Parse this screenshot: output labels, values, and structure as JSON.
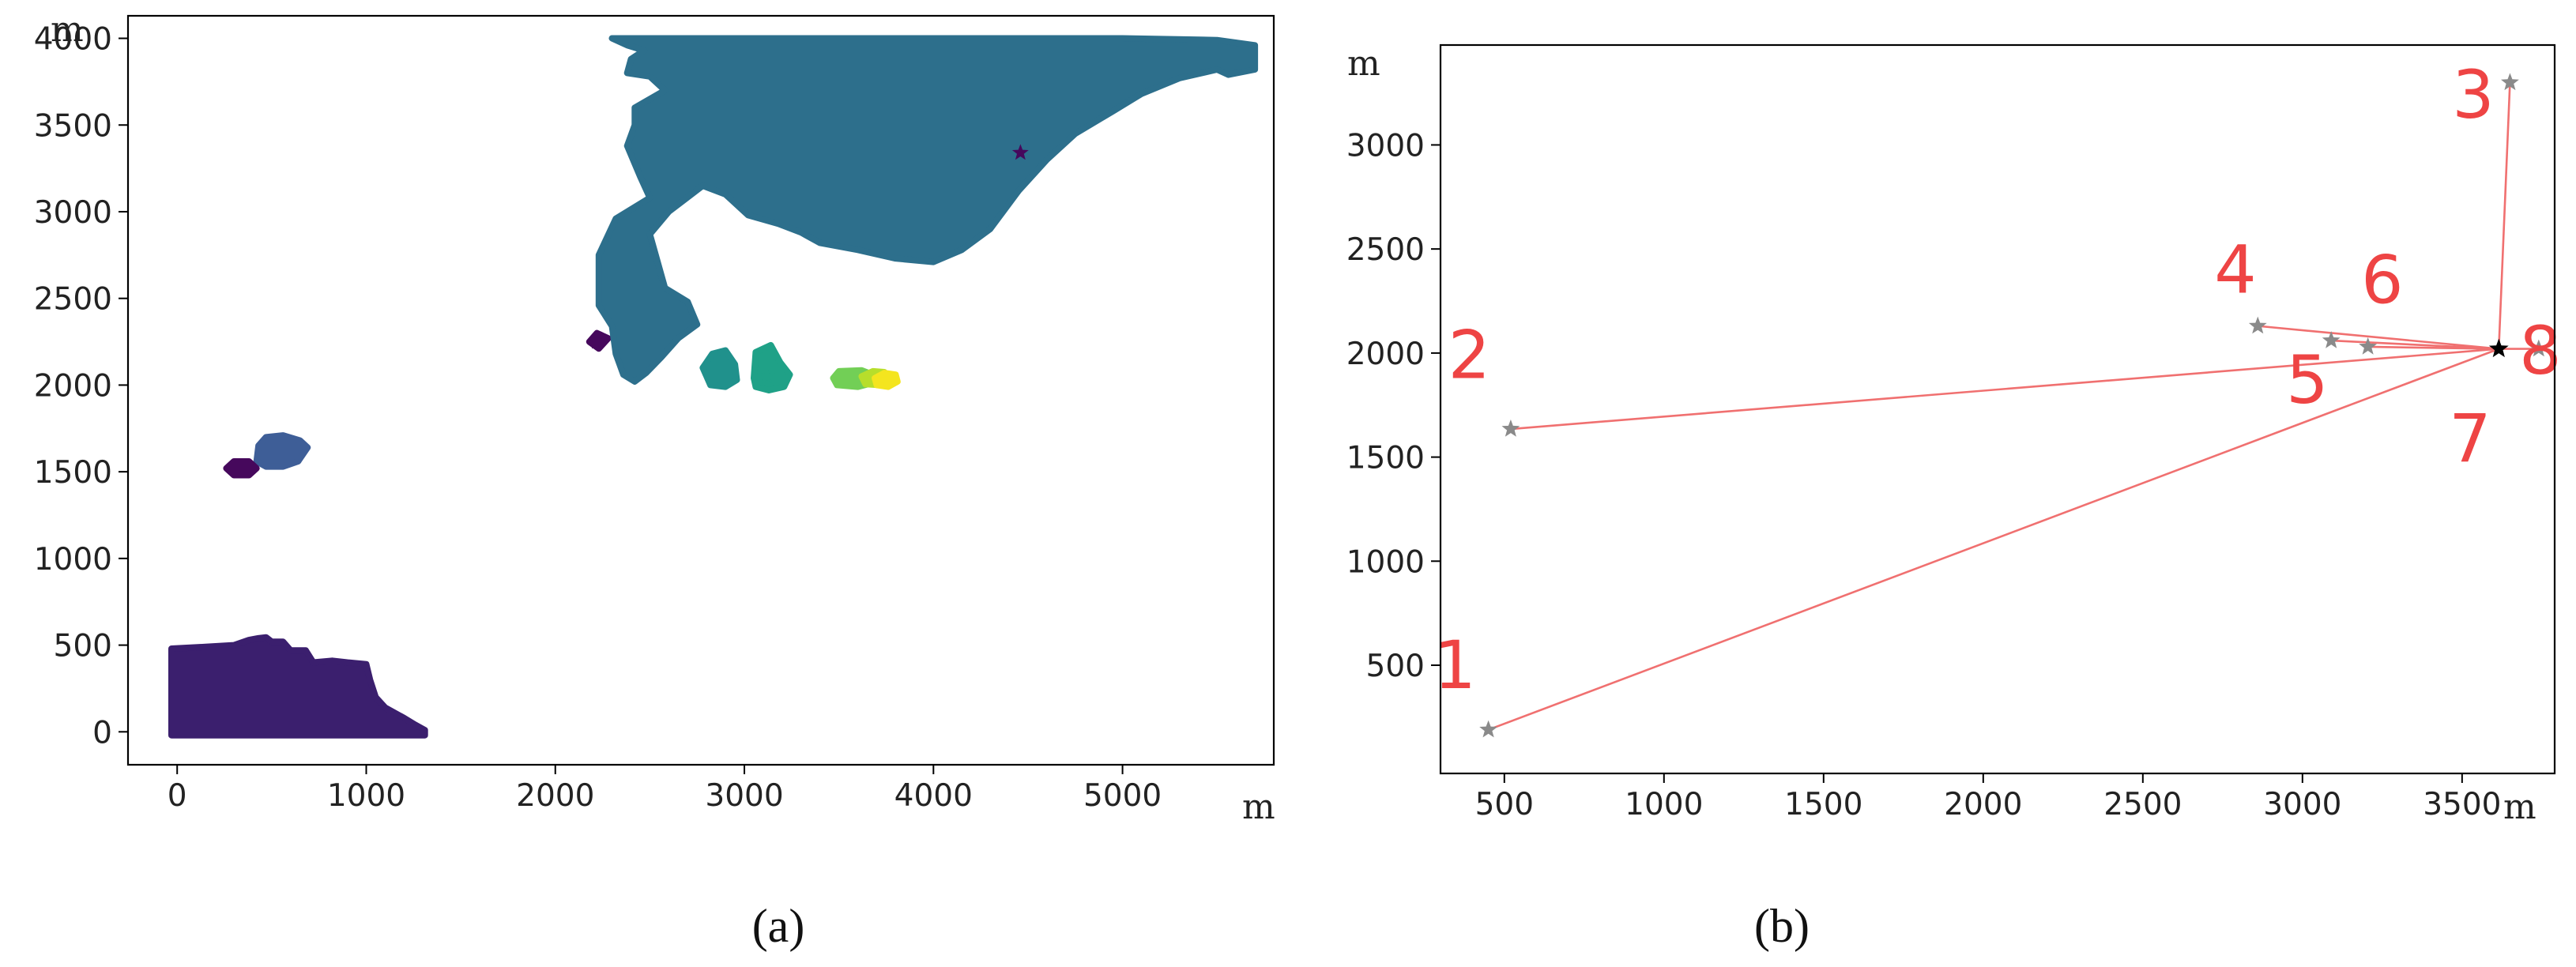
{
  "chart_data": [
    {
      "panel_caption": "(a)",
      "type": "scatter",
      "x_unit_label": "m",
      "y_unit_label": "m",
      "xlim": [
        -260,
        5800
      ],
      "ylim": [
        -190,
        4130
      ],
      "x_ticks": [
        0,
        1000,
        2000,
        3000,
        4000,
        5000
      ],
      "y_ticks": [
        0,
        500,
        1000,
        1500,
        2000,
        2500,
        3000,
        3500,
        4000
      ],
      "grid": false,
      "legend": "none",
      "clusters": [
        {
          "color": "#3b1f6e",
          "polygon": [
            [
              -30,
              480
            ],
            [
              150,
              490
            ],
            [
              300,
              500
            ],
            [
              380,
              530
            ],
            [
              430,
              540
            ],
            [
              470,
              545
            ],
            [
              500,
              520
            ],
            [
              560,
              520
            ],
            [
              600,
              470
            ],
            [
              680,
              470
            ],
            [
              720,
              400
            ],
            [
              820,
              410
            ],
            [
              900,
              400
            ],
            [
              1000,
              390
            ],
            [
              1020,
              300
            ],
            [
              1050,
              200
            ],
            [
              1100,
              140
            ],
            [
              1200,
              80
            ],
            [
              1260,
              40
            ],
            [
              1310,
              10
            ],
            [
              1310,
              -20
            ],
            [
              1150,
              -20
            ],
            [
              900,
              -20
            ],
            [
              600,
              -20
            ],
            [
              300,
              -20
            ],
            [
              -30,
              -20
            ]
          ]
        },
        {
          "color": "#3e5e97",
          "polygon": [
            [
              420,
              1560
            ],
            [
              430,
              1650
            ],
            [
              470,
              1700
            ],
            [
              560,
              1710
            ],
            [
              650,
              1680
            ],
            [
              690,
              1640
            ],
            [
              640,
              1560
            ],
            [
              560,
              1530
            ],
            [
              470,
              1530
            ]
          ]
        },
        {
          "color": "#46085c",
          "polygon": [
            [
              260,
              1520
            ],
            [
              300,
              1560
            ],
            [
              380,
              1560
            ],
            [
              420,
              1520
            ],
            [
              380,
              1480
            ],
            [
              300,
              1480
            ]
          ]
        },
        {
          "color": "#46085c",
          "polygon": [
            [
              2180,
              2250
            ],
            [
              2220,
              2300
            ],
            [
              2280,
              2270
            ],
            [
              2230,
              2210
            ]
          ]
        },
        {
          "color": "#2d6f8c",
          "polygon": [
            [
              2300,
              4000
            ],
            [
              2700,
              4000
            ],
            [
              3200,
              4000
            ],
            [
              3800,
              4000
            ],
            [
              4400,
              4000
            ],
            [
              5000,
              4000
            ],
            [
              5500,
              3990
            ],
            [
              5700,
              3960
            ],
            [
              5700,
              3820
            ],
            [
              5560,
              3790
            ],
            [
              5500,
              3820
            ],
            [
              5300,
              3770
            ],
            [
              5100,
              3680
            ],
            [
              4950,
              3580
            ],
            [
              4750,
              3450
            ],
            [
              4600,
              3300
            ],
            [
              4450,
              3120
            ],
            [
              4300,
              2900
            ],
            [
              4150,
              2780
            ],
            [
              4000,
              2710
            ],
            [
              3800,
              2730
            ],
            [
              3600,
              2780
            ],
            [
              3400,
              2820
            ],
            [
              3300,
              2880
            ],
            [
              3180,
              2930
            ],
            [
              3020,
              2980
            ],
            [
              2900,
              3100
            ],
            [
              2780,
              3150
            ],
            [
              2600,
              3000
            ],
            [
              2500,
              2870
            ],
            [
              2580,
              2560
            ],
            [
              2700,
              2480
            ],
            [
              2750,
              2350
            ],
            [
              2650,
              2270
            ],
            [
              2560,
              2160
            ],
            [
              2480,
              2070
            ],
            [
              2420,
              2020
            ],
            [
              2360,
              2060
            ],
            [
              2320,
              2180
            ],
            [
              2300,
              2340
            ],
            [
              2230,
              2460
            ],
            [
              2230,
              2750
            ],
            [
              2320,
              2960
            ],
            [
              2500,
              3080
            ],
            [
              2450,
              3200
            ],
            [
              2380,
              3380
            ],
            [
              2420,
              3500
            ],
            [
              2420,
              3600
            ],
            [
              2580,
              3700
            ],
            [
              2500,
              3780
            ],
            [
              2380,
              3800
            ],
            [
              2400,
              3880
            ],
            [
              2470,
              3930
            ],
            [
              2380,
              3960
            ]
          ]
        },
        {
          "color": "#20918c",
          "polygon": [
            [
              2780,
              2100
            ],
            [
              2830,
              2180
            ],
            [
              2900,
              2200
            ],
            [
              2950,
              2120
            ],
            [
              2960,
              2030
            ],
            [
              2900,
              1990
            ],
            [
              2820,
              2000
            ]
          ]
        },
        {
          "color": "#1fa187",
          "polygon": [
            [
              3050,
              2040
            ],
            [
              3060,
              2190
            ],
            [
              3140,
              2230
            ],
            [
              3190,
              2130
            ],
            [
              3240,
              2060
            ],
            [
              3210,
              1990
            ],
            [
              3130,
              1970
            ],
            [
              3060,
              1990
            ]
          ]
        },
        {
          "color": "#72cf56",
          "polygon": [
            [
              3470,
              2040
            ],
            [
              3500,
              2080
            ],
            [
              3620,
              2085
            ],
            [
              3680,
              2060
            ],
            [
              3670,
              2010
            ],
            [
              3600,
              1990
            ],
            [
              3490,
              2000
            ]
          ]
        },
        {
          "color": "#b7de2b",
          "polygon": [
            [
              3620,
              2050
            ],
            [
              3680,
              2080
            ],
            [
              3740,
              2075
            ],
            [
              3760,
              2030
            ],
            [
              3720,
              2000
            ],
            [
              3640,
              2005
            ]
          ]
        },
        {
          "color": "#f4e51f",
          "polygon": [
            [
              3690,
              2040
            ],
            [
              3740,
              2070
            ],
            [
              3800,
              2060
            ],
            [
              3810,
              2020
            ],
            [
              3760,
              1990
            ],
            [
              3700,
              2000
            ]
          ]
        }
      ],
      "markers": [
        {
          "x": 310,
          "y": 1530,
          "color": "#46085c"
        },
        {
          "x": 2220,
          "y": 2250,
          "color": "#46085c"
        },
        {
          "x": 4460,
          "y": 3340,
          "color": "#46085c"
        },
        {
          "x": 3120,
          "y": 2050,
          "color": "#1fa187"
        },
        {
          "x": 3520,
          "y": 2040,
          "color": "#72cf56"
        },
        {
          "x": 3760,
          "y": 2030,
          "color": "#f4e51f"
        }
      ]
    },
    {
      "panel_caption": "(b)",
      "type": "scatter",
      "x_unit_label": "m",
      "y_unit_label": "m",
      "xlim": [
        300,
        3790
      ],
      "ylim": [
        -20,
        3480
      ],
      "x_ticks": [
        500,
        1000,
        1500,
        2000,
        2500,
        3000,
        3500
      ],
      "y_ticks": [
        500,
        1000,
        1500,
        2000,
        2500,
        3000
      ],
      "grid": false,
      "legend": "none",
      "center": {
        "x": 3615,
        "y": 2020,
        "color": "#000000"
      },
      "line_color": "#f07070",
      "label_color": "#ee4444",
      "points": [
        {
          "label": "1",
          "x": 450,
          "y": 190,
          "label_x": 345,
          "label_y": 390
        },
        {
          "label": "2",
          "x": 520,
          "y": 1635,
          "label_x": 390,
          "label_y": 1880
        },
        {
          "label": "3",
          "x": 3650,
          "y": 3300,
          "label_x": 3535,
          "label_y": 3130
        },
        {
          "label": "4",
          "x": 2860,
          "y": 2130,
          "label_x": 2790,
          "label_y": 2290
        },
        {
          "label": "5",
          "x": 3090,
          "y": 2060,
          "label_x": 3015,
          "label_y": 1760
        },
        {
          "label": "6",
          "x": 3205,
          "y": 2030,
          "label_x": 3250,
          "label_y": 2240
        },
        {
          "label": "7",
          "x": 3615,
          "y": 2020,
          "label_x": 3525,
          "label_y": 1480
        },
        {
          "label": "8",
          "x": 3740,
          "y": 2020,
          "label_x": 3745,
          "label_y": 1900
        }
      ]
    }
  ]
}
